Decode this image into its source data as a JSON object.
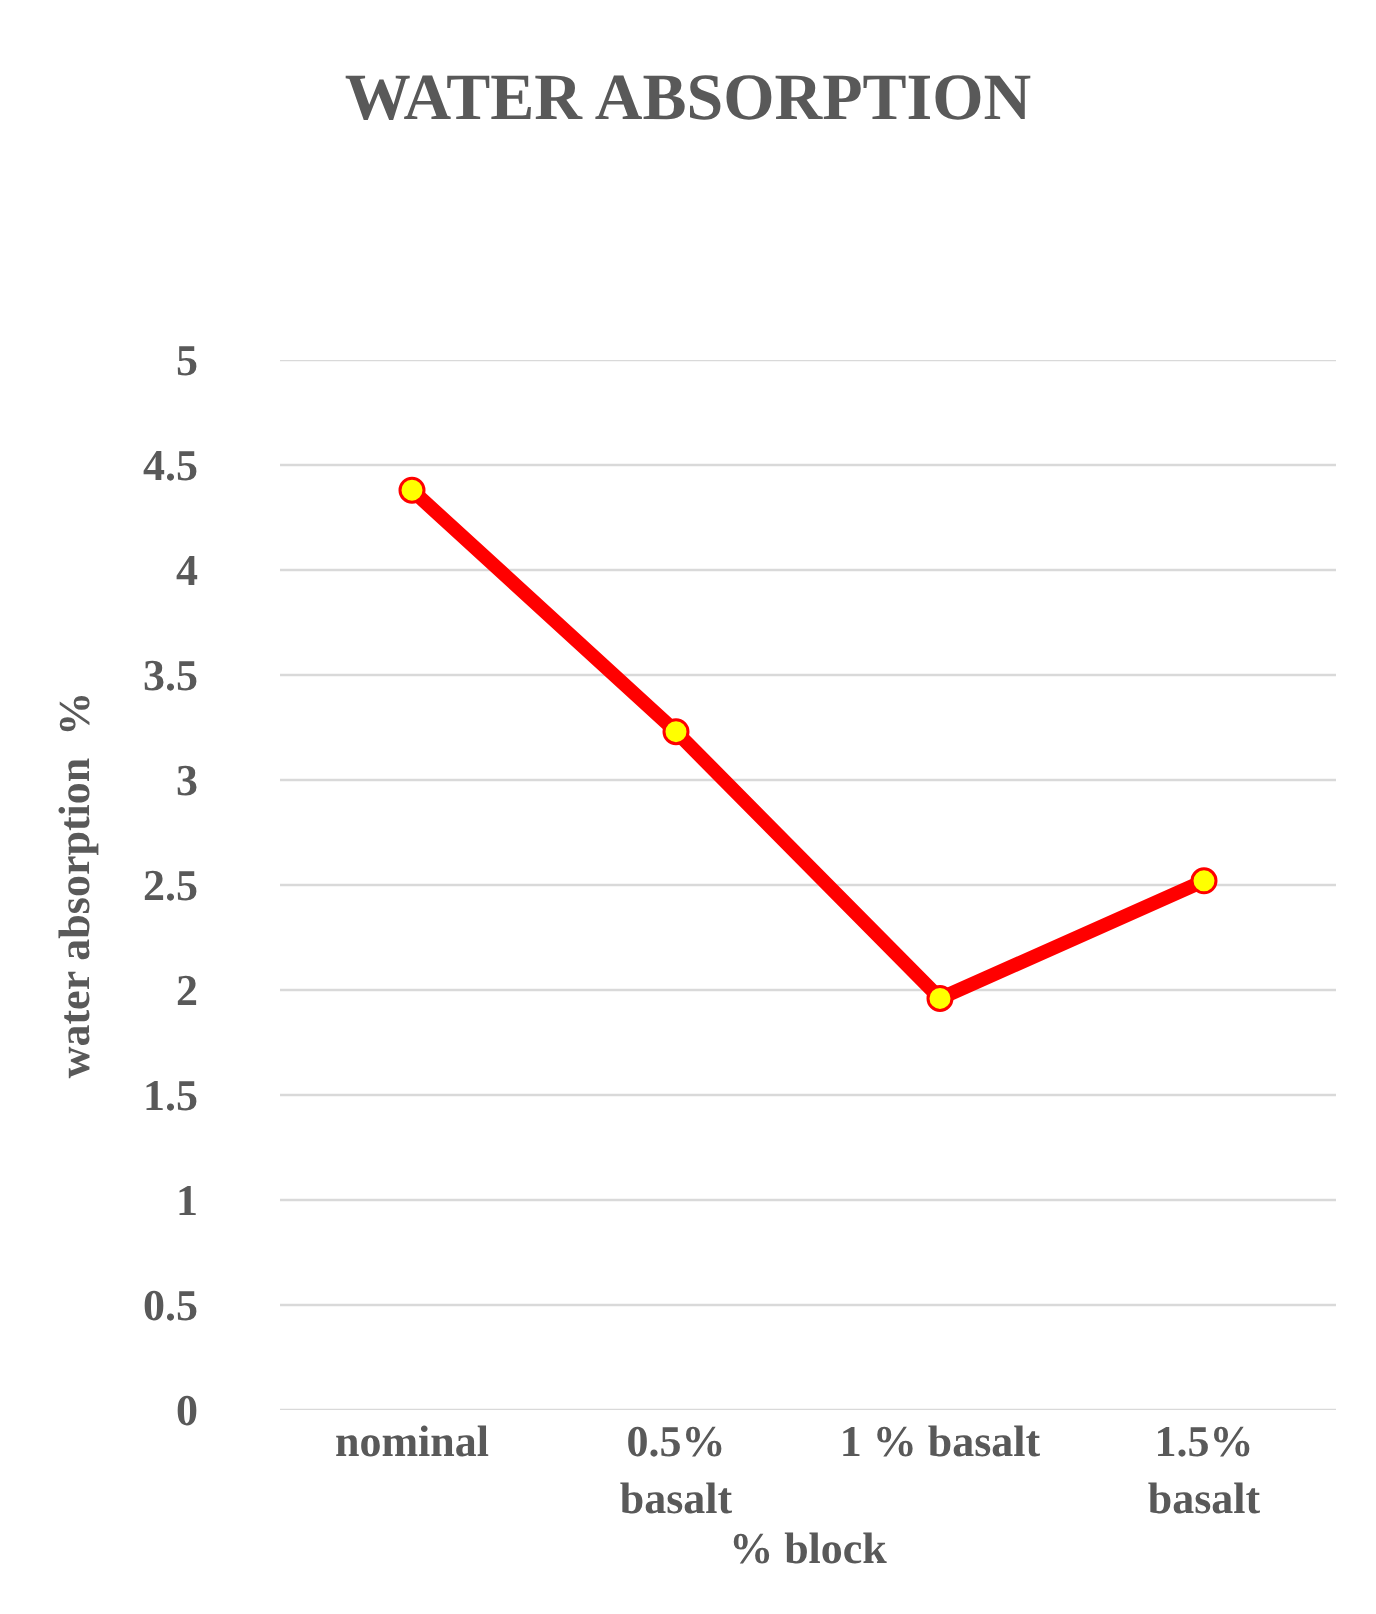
{
  "chart_data": {
    "type": "line",
    "title": "WATER ABSORPTION",
    "xlabel": "% block",
    "ylabel": "water absorption  %",
    "categories": [
      "nominal",
      "0.5% basalt",
      "1 % basalt",
      "1.5% basalt"
    ],
    "series": [
      {
        "color": "#ff0000",
        "values": [
          4.38,
          3.23,
          1.96,
          2.52
        ]
      }
    ],
    "ylim": [
      0,
      5
    ],
    "yticks": [
      0,
      0.5,
      1,
      1.5,
      2,
      2.5,
      3,
      3.5,
      4,
      4.5,
      5
    ],
    "grid": "y",
    "marker": "circle",
    "line_style": "solid"
  }
}
